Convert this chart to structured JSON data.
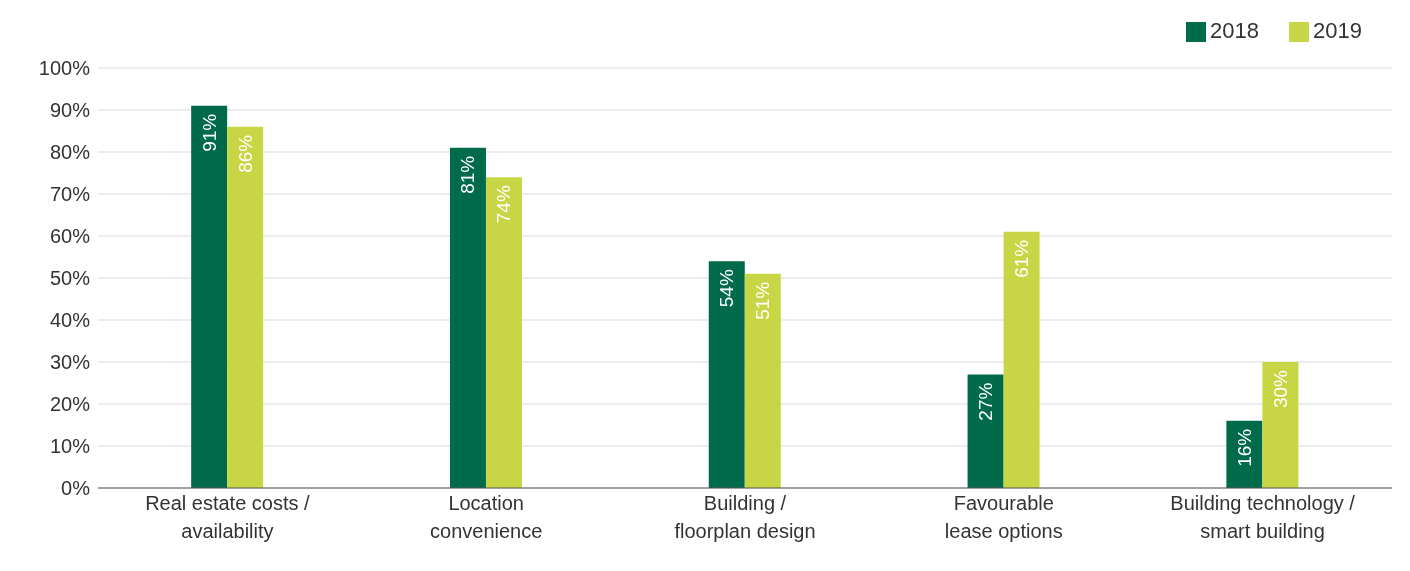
{
  "chart_data": {
    "type": "bar",
    "categories": [
      "Real estate costs /\navailability",
      "Location\nconvenience",
      "Building /\nfloorplan design",
      "Favourable\nlease options",
      "Building technology /\nsmart building"
    ],
    "series": [
      {
        "name": "2018",
        "color": "#006b4a",
        "values": [
          91,
          81,
          54,
          27,
          16
        ],
        "value_labels": [
          "91%",
          "81%",
          "54%",
          "27%",
          "16%"
        ]
      },
      {
        "name": "2019",
        "color": "#c8d645",
        "values": [
          86,
          74,
          51,
          61,
          30
        ],
        "value_labels": [
          "86%",
          "74%",
          "51%",
          "61%",
          "30%"
        ]
      }
    ],
    "ylim": [
      0,
      100
    ],
    "yticks": [
      {
        "value": 0,
        "label": "0%"
      },
      {
        "value": 10,
        "label": "10%"
      },
      {
        "value": 20,
        "label": "20%"
      },
      {
        "value": 30,
        "label": "30%"
      },
      {
        "value": 40,
        "label": "40%"
      },
      {
        "value": 50,
        "label": "50%"
      },
      {
        "value": 60,
        "label": "60%"
      },
      {
        "value": 70,
        "label": "70%"
      },
      {
        "value": 80,
        "label": "80%"
      },
      {
        "value": 90,
        "label": "90%"
      },
      {
        "value": 100,
        "label": "100%"
      }
    ],
    "grid": "y",
    "legend": "top right"
  }
}
